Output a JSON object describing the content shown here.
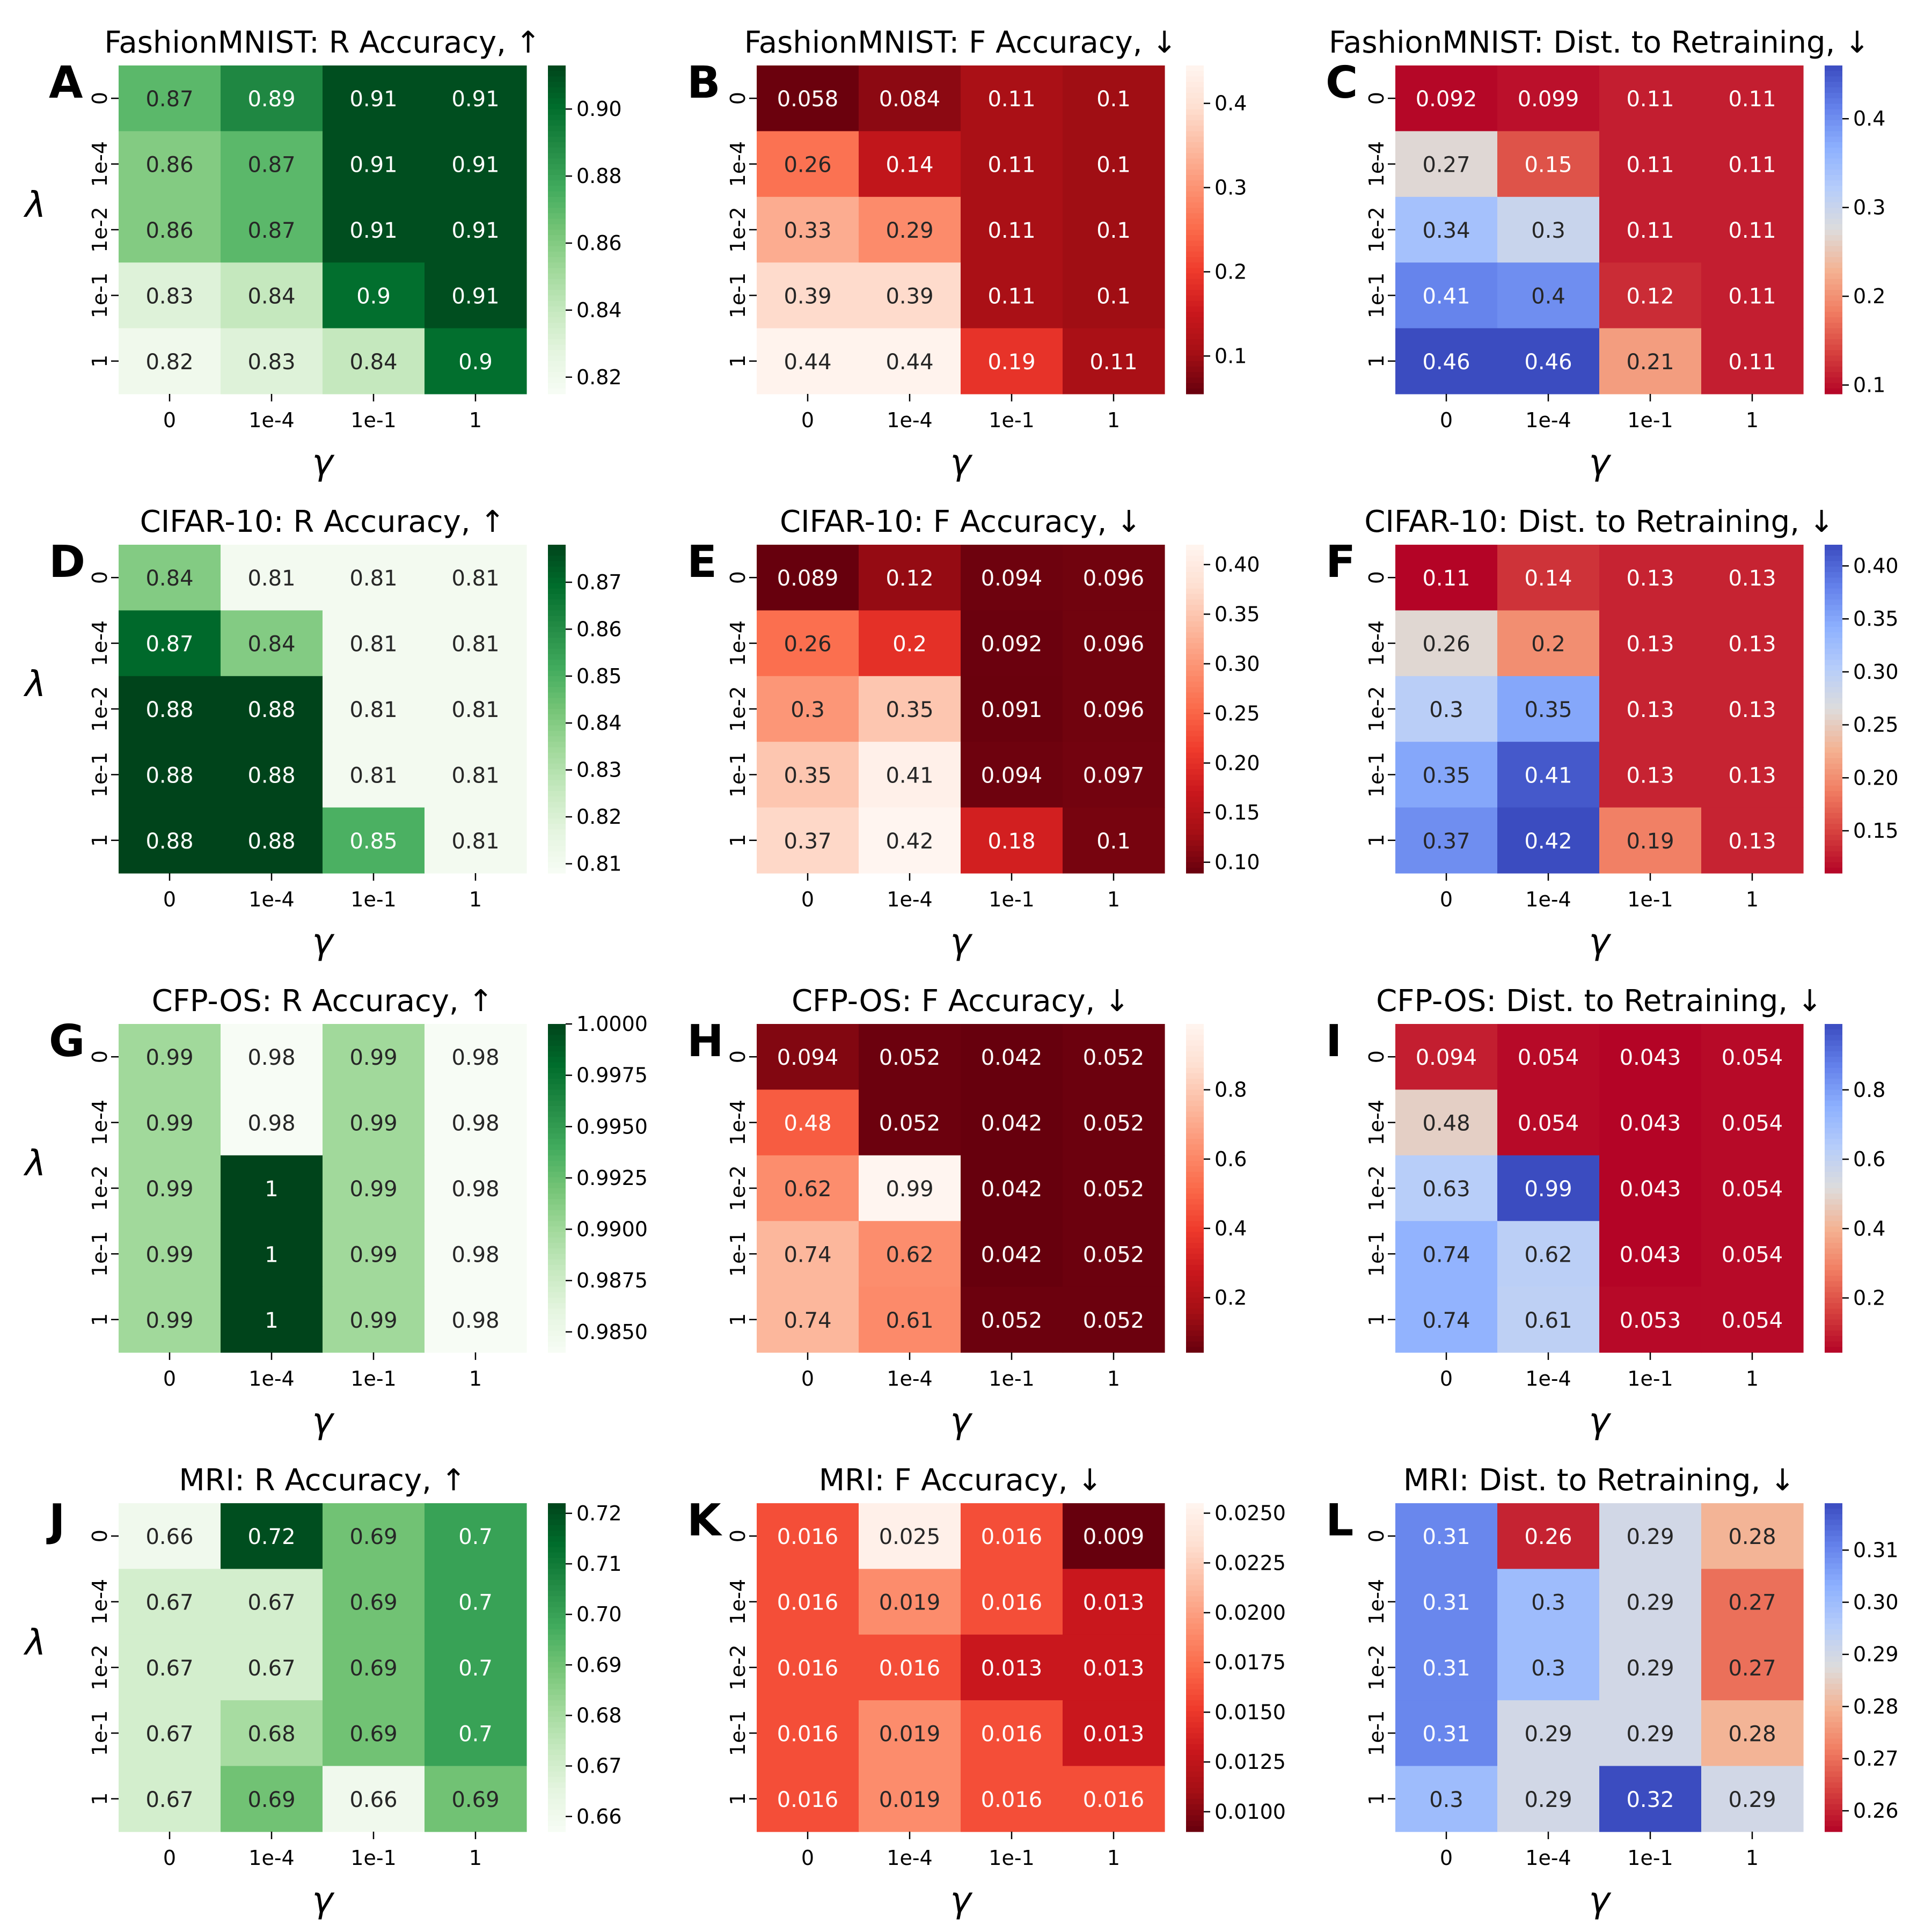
{
  "chart_data": [
    {
      "type": "heatmap",
      "panel_letter": "A",
      "title": "FashionMNIST: R Accuracy,  ↑",
      "xlabel": "γ",
      "ylabel": "λ",
      "x_categories": [
        "0",
        "1e-4",
        "1e-1",
        "1"
      ],
      "y_categories": [
        "0",
        "1e-4",
        "1e-2",
        "1e-1",
        "1"
      ],
      "values": [
        [
          0.87,
          0.89,
          0.91,
          0.91
        ],
        [
          0.86,
          0.87,
          0.91,
          0.91
        ],
        [
          0.86,
          0.87,
          0.91,
          0.91
        ],
        [
          0.83,
          0.84,
          0.9,
          0.91
        ],
        [
          0.82,
          0.83,
          0.84,
          0.9
        ]
      ],
      "colormap": "Greens",
      "vmin": 0.815,
      "vmax": 0.913,
      "colorbar_ticks": [
        "0.82",
        "0.84",
        "0.86",
        "0.88",
        "0.90"
      ]
    },
    {
      "type": "heatmap",
      "panel_letter": "B",
      "title": "FashionMNIST: F Accuracy,  ↓",
      "xlabel": "γ",
      "ylabel": "",
      "x_categories": [
        "0",
        "1e-4",
        "1e-1",
        "1"
      ],
      "y_categories": [
        "0",
        "1e-4",
        "1e-2",
        "1e-1",
        "1"
      ],
      "values": [
        [
          0.058,
          0.084,
          0.11,
          0.1
        ],
        [
          0.26,
          0.14,
          0.11,
          0.1
        ],
        [
          0.33,
          0.29,
          0.11,
          0.1
        ],
        [
          0.39,
          0.39,
          0.11,
          0.1
        ],
        [
          0.44,
          0.44,
          0.19,
          0.11
        ]
      ],
      "colormap": "Reds_r",
      "vmin": 0.055,
      "vmax": 0.445,
      "colorbar_ticks": [
        "0.1",
        "0.2",
        "0.3",
        "0.4"
      ]
    },
    {
      "type": "heatmap",
      "panel_letter": "C",
      "title": "FashionMNIST: Dist. to Retraining,  ↓",
      "xlabel": "γ",
      "ylabel": "",
      "x_categories": [
        "0",
        "1e-4",
        "1e-1",
        "1"
      ],
      "y_categories": [
        "0",
        "1e-4",
        "1e-2",
        "1e-1",
        "1"
      ],
      "values": [
        [
          0.092,
          0.099,
          0.11,
          0.11
        ],
        [
          0.27,
          0.15,
          0.11,
          0.11
        ],
        [
          0.34,
          0.3,
          0.11,
          0.11
        ],
        [
          0.41,
          0.4,
          0.12,
          0.11
        ],
        [
          0.46,
          0.46,
          0.21,
          0.11
        ]
      ],
      "colormap": "coolwarm_r",
      "vmin": 0.09,
      "vmax": 0.46,
      "colorbar_ticks": [
        "0.1",
        "0.2",
        "0.3",
        "0.4"
      ]
    },
    {
      "type": "heatmap",
      "panel_letter": "D",
      "title": "CIFAR-10: R Accuracy,  ↑",
      "xlabel": "γ",
      "ylabel": "λ",
      "x_categories": [
        "0",
        "1e-4",
        "1e-1",
        "1"
      ],
      "y_categories": [
        "0",
        "1e-4",
        "1e-2",
        "1e-1",
        "1"
      ],
      "values": [
        [
          0.84,
          0.81,
          0.81,
          0.81
        ],
        [
          0.87,
          0.84,
          0.81,
          0.81
        ],
        [
          0.88,
          0.88,
          0.81,
          0.81
        ],
        [
          0.88,
          0.88,
          0.81,
          0.81
        ],
        [
          0.88,
          0.88,
          0.85,
          0.81
        ]
      ],
      "colormap": "Greens",
      "vmin": 0.808,
      "vmax": 0.878,
      "colorbar_ticks": [
        "0.81",
        "0.82",
        "0.83",
        "0.84",
        "0.85",
        "0.86",
        "0.87"
      ]
    },
    {
      "type": "heatmap",
      "panel_letter": "E",
      "title": "CIFAR-10: F Accuracy,  ↓",
      "xlabel": "γ",
      "ylabel": "",
      "x_categories": [
        "0",
        "1e-4",
        "1e-1",
        "1"
      ],
      "y_categories": [
        "0",
        "1e-4",
        "1e-2",
        "1e-1",
        "1"
      ],
      "values": [
        [
          0.089,
          0.12,
          0.094,
          0.096
        ],
        [
          0.26,
          0.2,
          0.092,
          0.096
        ],
        [
          0.3,
          0.35,
          0.091,
          0.096
        ],
        [
          0.35,
          0.41,
          0.094,
          0.097
        ],
        [
          0.37,
          0.42,
          0.18,
          0.1
        ]
      ],
      "colormap": "Reds_r",
      "vmin": 0.089,
      "vmax": 0.42,
      "colorbar_ticks": [
        "0.10",
        "0.15",
        "0.20",
        "0.25",
        "0.30",
        "0.35",
        "0.40"
      ]
    },
    {
      "type": "heatmap",
      "panel_letter": "F",
      "title": "CIFAR-10: Dist. to Retraining,  ↓",
      "xlabel": "γ",
      "ylabel": "",
      "x_categories": [
        "0",
        "1e-4",
        "1e-1",
        "1"
      ],
      "y_categories": [
        "0",
        "1e-4",
        "1e-2",
        "1e-1",
        "1"
      ],
      "values": [
        [
          0.11,
          0.14,
          0.13,
          0.13
        ],
        [
          0.26,
          0.2,
          0.13,
          0.13
        ],
        [
          0.3,
          0.35,
          0.13,
          0.13
        ],
        [
          0.35,
          0.41,
          0.13,
          0.13
        ],
        [
          0.37,
          0.42,
          0.19,
          0.13
        ]
      ],
      "colormap": "coolwarm_r",
      "vmin": 0.11,
      "vmax": 0.42,
      "colorbar_ticks": [
        "0.15",
        "0.20",
        "0.25",
        "0.30",
        "0.35",
        "0.40"
      ]
    },
    {
      "type": "heatmap",
      "panel_letter": "G",
      "title": "CFP-OS: R Accuracy,  ↑",
      "xlabel": "γ",
      "ylabel": "λ",
      "x_categories": [
        "0",
        "1e-4",
        "1e-1",
        "1"
      ],
      "y_categories": [
        "0",
        "1e-4",
        "1e-2",
        "1e-1",
        "1"
      ],
      "values": [
        [
          0.99,
          0.98,
          0.99,
          0.98
        ],
        [
          0.99,
          0.98,
          0.99,
          0.98
        ],
        [
          0.99,
          1,
          0.99,
          0.98
        ],
        [
          0.99,
          1,
          0.99,
          0.98
        ],
        [
          0.99,
          1,
          0.99,
          0.98
        ]
      ],
      "colormap": "Greens",
      "vmin": 0.984,
      "vmax": 1.0,
      "colorbar_ticks": [
        "0.9850",
        "0.9875",
        "0.9900",
        "0.9925",
        "0.9950",
        "0.9975",
        "1.0000"
      ]
    },
    {
      "type": "heatmap",
      "panel_letter": "H",
      "title": "CFP-OS: F Accuracy,  ↓",
      "xlabel": "γ",
      "ylabel": "",
      "x_categories": [
        "0",
        "1e-4",
        "1e-1",
        "1"
      ],
      "y_categories": [
        "0",
        "1e-4",
        "1e-2",
        "1e-1",
        "1"
      ],
      "values": [
        [
          0.094,
          0.052,
          0.042,
          0.052
        ],
        [
          0.48,
          0.052,
          0.042,
          0.052
        ],
        [
          0.62,
          0.99,
          0.042,
          0.052
        ],
        [
          0.74,
          0.62,
          0.042,
          0.052
        ],
        [
          0.74,
          0.61,
          0.052,
          0.052
        ]
      ],
      "colormap": "Reds_r",
      "vmin": 0.042,
      "vmax": 0.99,
      "colorbar_ticks": [
        "0.2",
        "0.4",
        "0.6",
        "0.8"
      ]
    },
    {
      "type": "heatmap",
      "panel_letter": "I",
      "title": "CFP-OS: Dist. to Retraining,  ↓",
      "xlabel": "γ",
      "ylabel": "",
      "x_categories": [
        "0",
        "1e-4",
        "1e-1",
        "1"
      ],
      "y_categories": [
        "0",
        "1e-4",
        "1e-2",
        "1e-1",
        "1"
      ],
      "values": [
        [
          0.094,
          0.054,
          0.043,
          0.054
        ],
        [
          0.48,
          0.054,
          0.043,
          0.054
        ],
        [
          0.63,
          0.99,
          0.043,
          0.054
        ],
        [
          0.74,
          0.62,
          0.043,
          0.054
        ],
        [
          0.74,
          0.61,
          0.053,
          0.054
        ]
      ],
      "colormap": "coolwarm_r",
      "vmin": 0.043,
      "vmax": 0.99,
      "colorbar_ticks": [
        "0.2",
        "0.4",
        "0.6",
        "0.8"
      ]
    },
    {
      "type": "heatmap",
      "panel_letter": "J",
      "title": "MRI: R Accuracy,  ↑",
      "xlabel": "γ",
      "ylabel": "λ",
      "x_categories": [
        "0",
        "1e-4",
        "1e-1",
        "1"
      ],
      "y_categories": [
        "0",
        "1e-4",
        "1e-2",
        "1e-1",
        "1"
      ],
      "values": [
        [
          0.66,
          0.72,
          0.69,
          0.7
        ],
        [
          0.67,
          0.67,
          0.69,
          0.7
        ],
        [
          0.67,
          0.67,
          0.69,
          0.7
        ],
        [
          0.67,
          0.68,
          0.69,
          0.7
        ],
        [
          0.67,
          0.69,
          0.66,
          0.69
        ]
      ],
      "colormap": "Greens",
      "vmin": 0.657,
      "vmax": 0.722,
      "colorbar_ticks": [
        "0.66",
        "0.67",
        "0.68",
        "0.69",
        "0.70",
        "0.71",
        "0.72"
      ]
    },
    {
      "type": "heatmap",
      "panel_letter": "K",
      "title": "MRI: F Accuracy,  ↓",
      "xlabel": "γ",
      "ylabel": "",
      "x_categories": [
        "0",
        "1e-4",
        "1e-1",
        "1"
      ],
      "y_categories": [
        "0",
        "1e-4",
        "1e-2",
        "1e-1",
        "1"
      ],
      "values": [
        [
          0.016,
          0.025,
          0.016,
          0.009
        ],
        [
          0.016,
          0.019,
          0.016,
          0.013
        ],
        [
          0.016,
          0.016,
          0.013,
          0.013
        ],
        [
          0.016,
          0.019,
          0.016,
          0.013
        ],
        [
          0.016,
          0.019,
          0.016,
          0.016
        ]
      ],
      "colormap": "Reds_r",
      "vmin": 0.009,
      "vmax": 0.0255,
      "colorbar_ticks": [
        "0.0100",
        "0.0125",
        "0.0150",
        "0.0175",
        "0.0200",
        "0.0225",
        "0.0250"
      ]
    },
    {
      "type": "heatmap",
      "panel_letter": "L",
      "title": "MRI: Dist. to Retraining,  ↓",
      "xlabel": "γ",
      "ylabel": "",
      "x_categories": [
        "0",
        "1e-4",
        "1e-1",
        "1"
      ],
      "y_categories": [
        "0",
        "1e-4",
        "1e-2",
        "1e-1",
        "1"
      ],
      "values": [
        [
          0.31,
          0.26,
          0.29,
          0.28
        ],
        [
          0.31,
          0.3,
          0.29,
          0.27
        ],
        [
          0.31,
          0.3,
          0.29,
          0.27
        ],
        [
          0.31,
          0.29,
          0.29,
          0.28
        ],
        [
          0.3,
          0.29,
          0.32,
          0.29
        ]
      ],
      "colormap": "coolwarm_r",
      "vmin": 0.256,
      "vmax": 0.319,
      "colorbar_ticks": [
        "0.26",
        "0.27",
        "0.28",
        "0.29",
        "0.30",
        "0.31"
      ]
    }
  ]
}
